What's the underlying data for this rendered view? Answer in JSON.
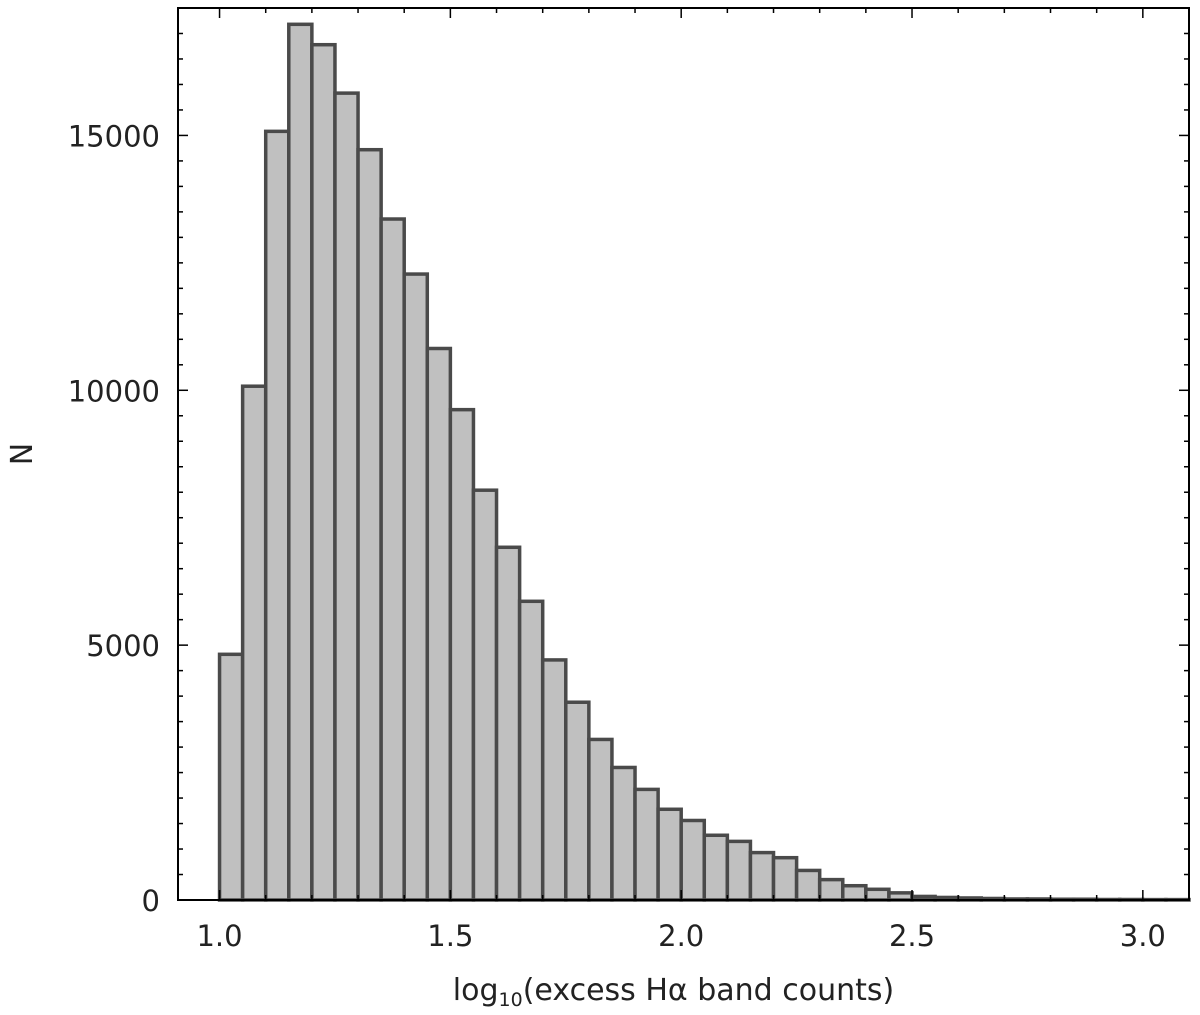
{
  "chart_data": {
    "type": "bar",
    "xlabel": "log10(excess Hα band counts)",
    "xlabel_parts": {
      "prefix": "log",
      "subscript": "10",
      "suffix": "(excess Hα band counts)"
    },
    "ylabel": "N",
    "xlim": [
      0.91,
      3.1
    ],
    "ylim": [
      0,
      17500
    ],
    "xticks": [
      1.0,
      1.5,
      2.0,
      2.5,
      3.0
    ],
    "xtick_labels": [
      "1.0",
      "1.5",
      "2.0",
      "2.5",
      "3.0"
    ],
    "yticks": [
      0,
      5000,
      10000,
      15000
    ],
    "ytick_labels": [
      "0",
      "5000",
      "10000",
      "15000"
    ],
    "grid": false,
    "bin_width": 0.05,
    "bin_starts": [
      1.0,
      1.05,
      1.1,
      1.15,
      1.2,
      1.25,
      1.3,
      1.35,
      1.4,
      1.45,
      1.5,
      1.55,
      1.6,
      1.65,
      1.7,
      1.75,
      1.8,
      1.85,
      1.9,
      1.95,
      2.0,
      2.05,
      2.1,
      2.15,
      2.2,
      2.25,
      2.3,
      2.35,
      2.4,
      2.45,
      2.5,
      2.55,
      2.6,
      2.65,
      2.7,
      2.75,
      2.8,
      2.85,
      2.9,
      2.95,
      3.0,
      3.05
    ],
    "values": [
      4820,
      10080,
      15080,
      17180,
      16780,
      15830,
      14720,
      13360,
      12280,
      10820,
      9620,
      8040,
      6920,
      5860,
      4710,
      3880,
      3150,
      2600,
      2170,
      1780,
      1560,
      1270,
      1150,
      930,
      830,
      580,
      400,
      280,
      210,
      140,
      70,
      50,
      40,
      30,
      20,
      20,
      15,
      15,
      10,
      10,
      8,
      8
    ],
    "bar_fill": "#c0c0c0",
    "bar_edge": "#4a4a4a"
  }
}
